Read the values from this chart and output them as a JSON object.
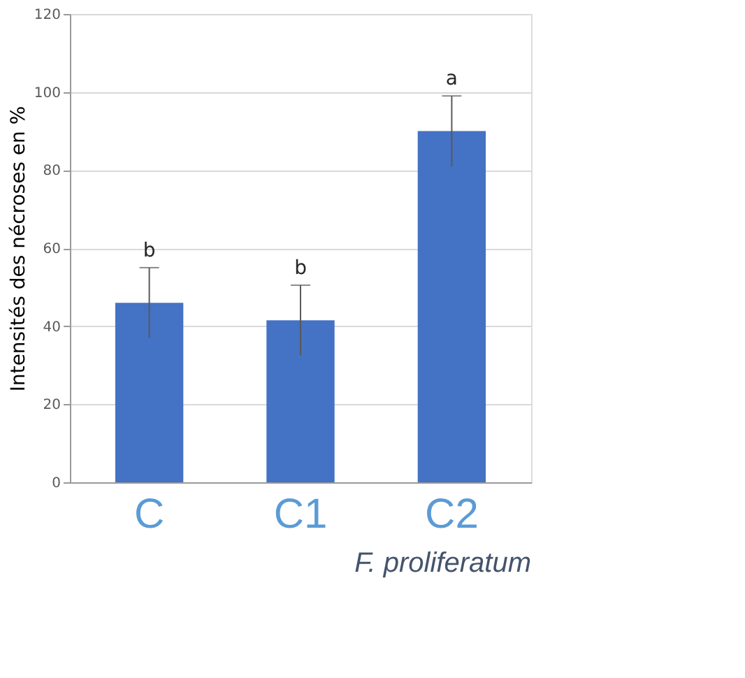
{
  "chart_data": {
    "type": "bar",
    "ylabel": "Intensités des nécroses en %",
    "categories": [
      "C",
      "C1",
      "C2"
    ],
    "values": [
      46,
      41.5,
      90
    ],
    "errors": [
      9,
      9,
      9
    ],
    "color": "#4472c4",
    "ylim": [
      0,
      120
    ],
    "yticks": [
      0,
      20,
      40,
      60,
      80,
      100,
      120
    ],
    "grid": "y",
    "annotations": [
      "b",
      "b",
      "a",
      "F. proliferatum"
    ]
  }
}
